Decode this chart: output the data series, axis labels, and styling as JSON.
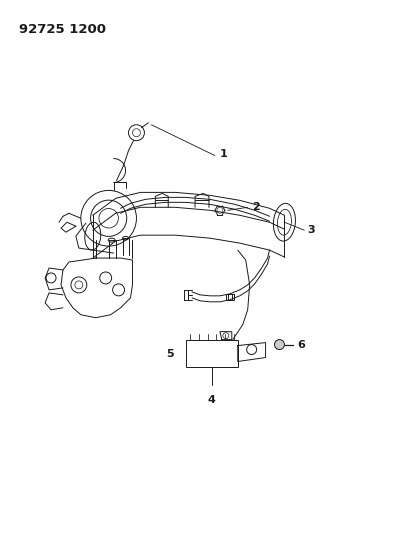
{
  "title": "92725 1200",
  "bg_color": "#ffffff",
  "line_color": "#1a1a1a",
  "label_color": "#1a1a1a",
  "part_labels": [
    "1",
    "2",
    "3",
    "4",
    "5",
    "6"
  ],
  "figsize": [
    4.05,
    5.33
  ],
  "dpi": 100
}
